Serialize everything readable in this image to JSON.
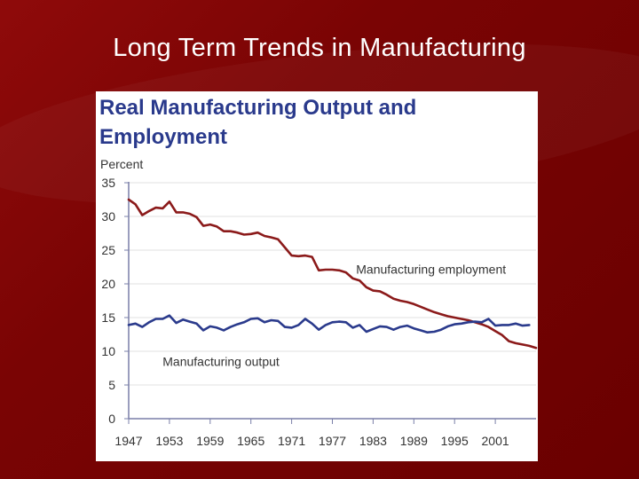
{
  "slide": {
    "title": "Long Term Trends in Manufacturing"
  },
  "chart_data": {
    "type": "line",
    "title": "Real Manufacturing Output and Employment",
    "ylabel": "Percent",
    "xlabel": "",
    "ylim": [
      0,
      35
    ],
    "xlim": [
      1947,
      2007
    ],
    "yticks": [
      0,
      5,
      10,
      15,
      20,
      25,
      30,
      35
    ],
    "xticks": [
      1947,
      1953,
      1959,
      1965,
      1971,
      1977,
      1983,
      1989,
      1995,
      2001
    ],
    "grid": true,
    "series": [
      {
        "name": "Manufacturing employment",
        "color": "#8b1a1a",
        "x": [
          1947,
          1948,
          1949,
          1950,
          1951,
          1952,
          1953,
          1954,
          1955,
          1956,
          1957,
          1958,
          1959,
          1960,
          1961,
          1962,
          1963,
          1964,
          1965,
          1966,
          1967,
          1968,
          1969,
          1970,
          1971,
          1972,
          1973,
          1974,
          1975,
          1976,
          1977,
          1978,
          1979,
          1980,
          1981,
          1982,
          1983,
          1984,
          1985,
          1986,
          1987,
          1988,
          1989,
          1990,
          1991,
          1992,
          1993,
          1994,
          1995,
          1996,
          1997,
          1998,
          1999,
          2000,
          2001,
          2002,
          2003,
          2004,
          2005,
          2006,
          2007
        ],
        "values": [
          32.5,
          31.8,
          30.2,
          30.8,
          31.3,
          31.2,
          32.2,
          30.6,
          30.6,
          30.4,
          29.9,
          28.6,
          28.8,
          28.5,
          27.8,
          27.8,
          27.6,
          27.3,
          27.4,
          27.6,
          27.1,
          26.9,
          26.6,
          25.4,
          24.2,
          24.1,
          24.2,
          24.0,
          22.0,
          22.1,
          22.1,
          22.0,
          21.7,
          20.8,
          20.5,
          19.5,
          19.0,
          18.9,
          18.4,
          17.8,
          17.5,
          17.3,
          17.0,
          16.6,
          16.2,
          15.8,
          15.5,
          15.2,
          15.0,
          14.8,
          14.6,
          14.3,
          14.0,
          13.6,
          13.0,
          12.4,
          11.5,
          11.2,
          11.0,
          10.8,
          10.5
        ]
      },
      {
        "name": "Manufacturing output",
        "color": "#2a3a8c",
        "x": [
          1947,
          1948,
          1949,
          1950,
          1951,
          1952,
          1953,
          1954,
          1955,
          1956,
          1957,
          1958,
          1959,
          1960,
          1961,
          1962,
          1963,
          1964,
          1965,
          1966,
          1967,
          1968,
          1969,
          1970,
          1971,
          1972,
          1973,
          1974,
          1975,
          1976,
          1977,
          1978,
          1979,
          1980,
          1981,
          1982,
          1983,
          1984,
          1985,
          1986,
          1987,
          1988,
          1989,
          1990,
          1991,
          1992,
          1993,
          1994,
          1995,
          1996,
          1997,
          1998,
          1999,
          2000,
          2001,
          2002,
          2003,
          2004,
          2005,
          2006
        ],
        "values": [
          13.9,
          14.1,
          13.6,
          14.3,
          14.8,
          14.8,
          15.3,
          14.2,
          14.7,
          14.4,
          14.1,
          13.1,
          13.7,
          13.5,
          13.1,
          13.6,
          14.0,
          14.3,
          14.8,
          14.9,
          14.3,
          14.6,
          14.5,
          13.6,
          13.5,
          13.9,
          14.8,
          14.1,
          13.2,
          13.9,
          14.3,
          14.4,
          14.3,
          13.5,
          13.9,
          12.9,
          13.3,
          13.7,
          13.6,
          13.2,
          13.6,
          13.8,
          13.4,
          13.1,
          12.8,
          12.9,
          13.2,
          13.7,
          14.0,
          14.1,
          14.3,
          14.4,
          14.3,
          14.8,
          13.8,
          13.9,
          13.9,
          14.1,
          13.8,
          13.9
        ]
      }
    ]
  }
}
